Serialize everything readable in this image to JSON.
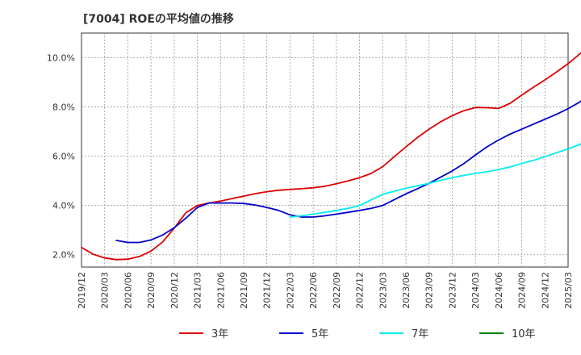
{
  "chart_data": {
    "type": "line",
    "title": "[7004]  ROEの平均値の推移",
    "xlabel": "",
    "ylabel": "",
    "ylim": [
      1.5,
      11.0
    ],
    "yticks": [
      2.0,
      4.0,
      6.0,
      8.0,
      10.0
    ],
    "ytick_labels": [
      "2.0%",
      "4.0%",
      "6.0%",
      "8.0%",
      "10.0%"
    ],
    "x_ticks": [
      "2019/12",
      "2020/03",
      "2020/06",
      "2020/09",
      "2020/12",
      "2021/03",
      "2021/06",
      "2021/09",
      "2021/12",
      "2022/03",
      "2022/06",
      "2022/09",
      "2022/12",
      "2023/03",
      "2023/06",
      "2023/09",
      "2023/12",
      "2024/03",
      "2024/06",
      "2024/09",
      "2024/12",
      "2025/03"
    ],
    "grid": true,
    "legend_position": "bottom",
    "series": [
      {
        "name": "3年",
        "color": "#dd0000",
        "start_index": 0,
        "values": [
          2.3,
          2.02,
          1.87,
          1.8,
          1.82,
          1.93,
          2.15,
          2.52,
          3.08,
          3.7,
          4.0,
          4.1,
          4.18,
          4.28,
          4.38,
          4.48,
          4.56,
          4.62,
          4.65,
          4.68,
          4.72,
          4.78,
          4.88,
          5.0,
          5.13,
          5.3,
          5.58,
          5.98,
          6.38,
          6.76,
          7.1,
          7.4,
          7.65,
          7.85,
          7.98,
          7.97,
          7.94,
          8.15,
          8.48,
          8.8,
          9.1,
          9.42,
          9.76,
          10.15,
          10.55
        ]
      },
      {
        "name": "5年",
        "color": "#0000cc",
        "start_index": 3,
        "values": [
          2.58,
          2.5,
          2.5,
          2.6,
          2.8,
          3.1,
          3.48,
          3.92,
          4.1,
          4.1,
          4.1,
          4.08,
          4.02,
          3.92,
          3.8,
          3.62,
          3.53,
          3.53,
          3.58,
          3.65,
          3.72,
          3.8,
          3.88,
          4.0,
          4.24,
          4.47,
          4.68,
          4.9,
          5.15,
          5.4,
          5.7,
          6.05,
          6.38,
          6.66,
          6.9,
          7.1,
          7.3,
          7.5,
          7.7,
          7.93,
          8.2,
          8.55
        ]
      },
      {
        "name": "7年",
        "color": "#00eeee",
        "start_index": 18,
        "values": [
          3.53,
          3.58,
          3.65,
          3.72,
          3.8,
          3.88,
          4.0,
          4.23,
          4.45,
          4.58,
          4.7,
          4.8,
          4.9,
          5.02,
          5.13,
          5.22,
          5.3,
          5.37,
          5.46,
          5.57,
          5.7,
          5.83,
          5.98,
          6.14,
          6.3,
          6.48,
          6.66
        ]
      },
      {
        "name": "10年",
        "color": "#008000",
        "start_index": 0,
        "values": []
      }
    ]
  }
}
